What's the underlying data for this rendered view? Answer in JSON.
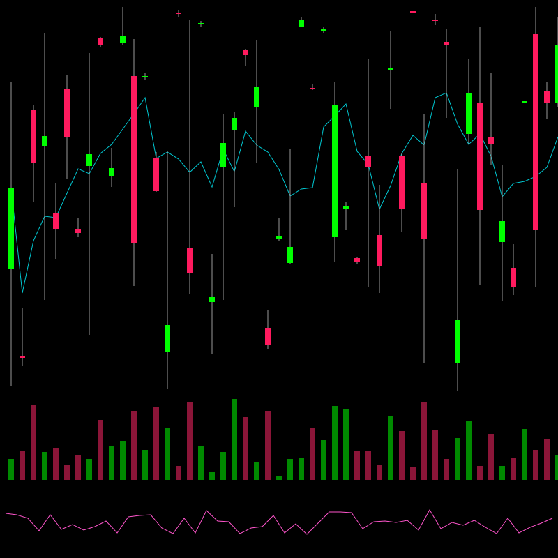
{
  "chart_data": [
    {
      "type": "candlestick",
      "open": [
        175,
        49,
        402,
        351,
        255,
        432,
        231,
        322,
        505,
        307,
        499,
        451,
        449,
        334,
        55,
        542,
        205,
        525,
        127,
        320,
        373,
        488,
        407,
        90,
        217,
        183,
        522,
        434,
        516,
        220,
        260,
        190,
        336,
        223,
        459,
        337,
        544,
        298,
        532,
        500,
        40,
        368,
        412,
        364,
        213,
        176,
        413,
        511,
        429,
        412
      ],
      "high": [
        442,
        119,
        410,
        512,
        297,
        452,
        248,
        484,
        507,
        348,
        550,
        504,
        455,
        342,
        344,
        546,
        532,
        530,
        196,
        396,
        400,
        490,
        502,
        116,
        247,
        347,
        535,
        440,
        522,
        442,
        271,
        192,
        475,
        295,
        515,
        341,
        544,
        397,
        540,
        518,
        317,
        476,
        522,
        456,
        324,
        210,
        415,
        550,
        442,
        535
      ],
      "low": [
        7,
        35,
        270,
        130,
        188,
        303,
        220,
        80,
        492,
        292,
        495,
        150,
        445,
        285,
        3,
        536,
        138,
        522,
        53,
        130,
        263,
        465,
        326,
        59,
        215,
        182,
        522,
        431,
        513,
        184,
        230,
        182,
        149,
        140,
        404,
        228,
        542,
        39,
        524,
        391,
        0,
        353,
        151,
        323,
        128,
        137,
        413,
        149,
        390,
        407
      ],
      "close": [
        290,
        47,
        326,
        365,
        231,
        364,
        226,
        339,
        495,
        319,
        508,
        212,
        451,
        286,
        94,
        540,
        169,
        527,
        134,
        355,
        391,
        481,
        435,
        66,
        222,
        206,
        531,
        432,
        519,
        409,
        265,
        185,
        320,
        178,
        462,
        261,
        542,
        217,
        531,
        496,
        101,
        427,
        259,
        353,
        243,
        149,
        415,
        230,
        412,
        495
      ],
      "up_color": "#00ff00",
      "down_color": "#ff1a5e",
      "wick_color": "#9a9a9a",
      "ylim": [
        0,
        560
      ],
      "overlay": {
        "type": "line",
        "color": "#00c8d2",
        "values": [
          290,
          140,
          215,
          250,
          248,
          283,
          318,
          311,
          340,
          353,
          375,
          397,
          420,
          333,
          342,
          332,
          313,
          328,
          292,
          346,
          314,
          372,
          352,
          342,
          317,
          279,
          289,
          291,
          378,
          394,
          411,
          343,
          324,
          260,
          294,
          340,
          366,
          352,
          420,
          427,
          382,
          353,
          368,
          336,
          278,
          297,
          300,
          307,
          320,
          364
        ]
      }
    },
    {
      "type": "bar",
      "values": [
        30,
        41,
        108,
        40,
        45,
        22,
        35,
        30,
        86,
        49,
        56,
        99,
        43,
        104,
        74,
        20,
        111,
        48,
        12,
        40,
        116,
        90,
        26,
        99,
        6,
        30,
        31,
        74,
        57,
        106,
        101,
        42,
        41,
        22,
        92,
        70,
        19,
        112,
        71,
        30,
        60,
        84,
        20,
        66,
        20,
        32,
        73,
        43,
        58,
        35
      ],
      "up_color": "#008a00",
      "down_color": "#8b1538",
      "ylim": [
        0,
        128
      ]
    },
    {
      "type": "line",
      "color": "#ff55cc",
      "values": [
        64,
        62,
        57,
        39,
        62,
        41,
        48,
        40,
        45,
        53,
        36,
        59,
        61,
        62,
        43,
        35,
        57,
        36,
        68,
        53,
        52,
        35,
        43,
        45,
        61,
        36,
        49,
        34,
        50,
        66,
        66,
        65,
        42,
        52,
        53,
        51,
        54,
        40,
        69,
        42,
        51,
        47,
        54,
        44,
        35,
        57,
        36,
        44,
        50,
        57
      ],
      "ylim": [
        20,
        80
      ]
    }
  ]
}
